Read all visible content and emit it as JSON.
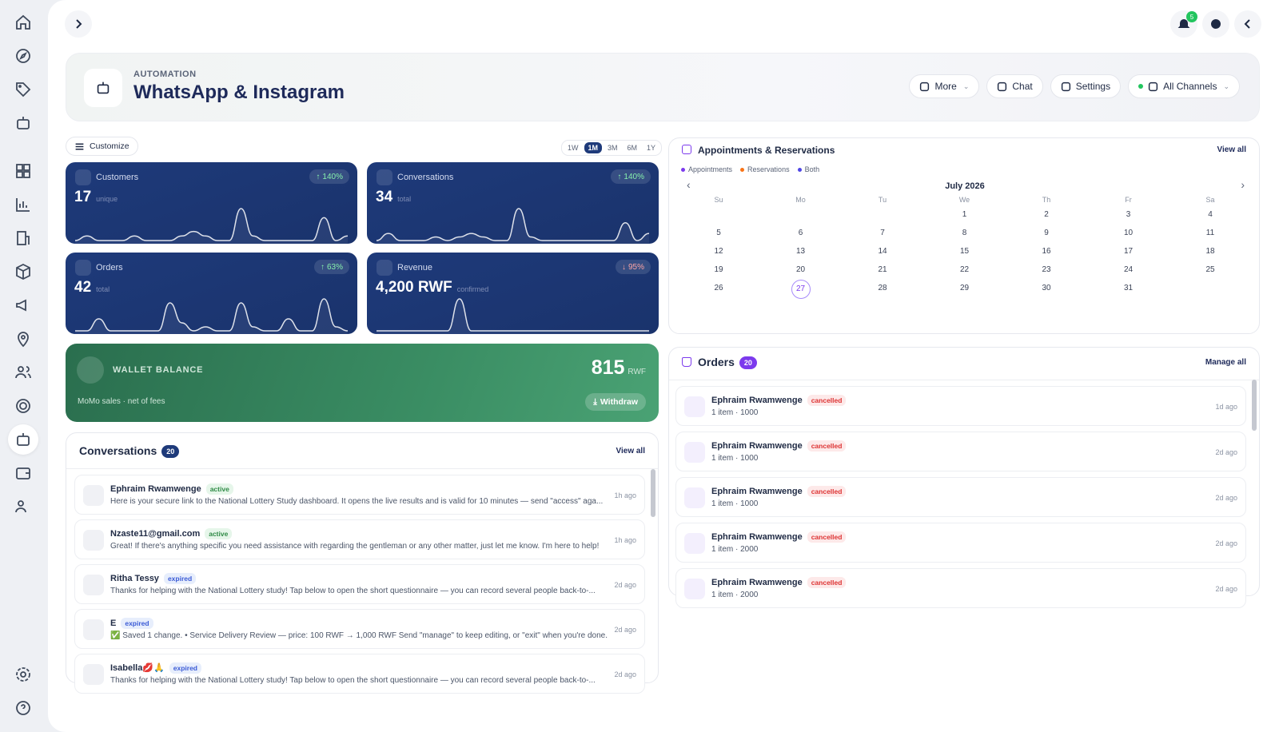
{
  "topbar": {
    "notification_count": "5"
  },
  "header": {
    "eyebrow": "AUTOMATION",
    "title": "WhatsApp & Instagram",
    "actions": [
      "More",
      "Chat",
      "Settings",
      "All Channels"
    ]
  },
  "toolbar": {
    "customize": "Customize",
    "ranges": [
      "1W",
      "1M",
      "3M",
      "6M",
      "1Y"
    ],
    "active_range_index": 1
  },
  "stats": [
    {
      "label": "Customers",
      "value": "17",
      "unit": "unique",
      "change": "140%",
      "trend": "up",
      "sparkline": [
        0,
        1,
        0,
        0,
        0,
        1,
        0,
        0,
        0,
        1,
        2,
        1,
        0,
        0,
        7,
        1,
        0,
        0,
        0,
        0,
        0,
        5,
        0,
        1
      ]
    },
    {
      "label": "Conversations",
      "value": "34",
      "unit": "total",
      "change": "140%",
      "trend": "up",
      "sparkline": [
        0,
        2,
        0,
        0,
        0,
        1,
        0,
        1,
        2,
        1,
        0,
        0,
        9,
        1,
        0,
        0,
        0,
        0,
        0,
        0,
        0,
        5,
        0,
        2
      ]
    },
    {
      "label": "Orders",
      "value": "42",
      "unit": "total",
      "change": "63%",
      "trend": "up",
      "sparkline": [
        0,
        0,
        3,
        0,
        0,
        0,
        0,
        0,
        7,
        2,
        0,
        1,
        0,
        0,
        7,
        1,
        0,
        0,
        3,
        0,
        0,
        8,
        1,
        0
      ]
    },
    {
      "label": "Revenue",
      "value": "4,200 RWF",
      "unit": "confirmed",
      "change": "95%",
      "trend": "down",
      "sparkline": [
        0,
        0,
        0,
        0,
        0,
        0,
        0,
        9,
        0,
        0,
        0,
        0,
        0,
        0,
        0,
        0,
        0,
        0,
        0,
        0,
        0,
        0,
        0,
        0
      ]
    }
  ],
  "wallet": {
    "label": "WALLET BALANCE",
    "amount": "815",
    "currency": "RWF",
    "note": "MoMo sales · net of fees",
    "action": "Withdraw"
  },
  "conversations": {
    "title": "Conversations",
    "count": "20",
    "view_all": "View all",
    "items": [
      {
        "name": "Ephraim Rwamwenge",
        "status": "active",
        "message": "Here is your secure link to the National Lottery Study dashboard. It opens the live results and is valid for 10 minutes — send \"access\" aga...",
        "time": "1h ago"
      },
      {
        "name": "Nzaste11@gmail.com",
        "status": "active",
        "message": "Great! If there's anything specific you need assistance with regarding the gentleman or any other matter, just let me know. I'm here to help!",
        "time": "1h ago"
      },
      {
        "name": "Ritha Tessy",
        "status": "expired",
        "message": "Thanks for helping with the National Lottery study! Tap below to open the short questionnaire — you can record several people back-to-...",
        "time": "2d ago"
      },
      {
        "name": "E",
        "status": "expired",
        "message": "✅ Saved 1 change. • Service Delivery Review — price: 100 RWF → 1,000 RWF Send \"manage\" to keep editing, or \"exit\" when you're done.",
        "time": "2d ago"
      },
      {
        "name": "Isabella💋🙏",
        "status": "expired",
        "message": "Thanks for helping with the National Lottery study! Tap below to open the short questionnaire — you can record several people back-to-...",
        "time": "2d ago"
      }
    ]
  },
  "appointments": {
    "title": "Appointments & Reservations",
    "view_all": "View all",
    "legend": [
      {
        "label": "Appointments",
        "color": "#7c3aed"
      },
      {
        "label": "Reservations",
        "color": "#f97316"
      },
      {
        "label": "Both",
        "color": "#4f46e5"
      }
    ],
    "month": "July 2026",
    "weekdays": [
      "Su",
      "Mo",
      "Tu",
      "We",
      "Th",
      "Fr",
      "Sa"
    ],
    "weeks": [
      [
        null,
        null,
        null,
        "1",
        "2",
        "3",
        "4"
      ],
      [
        "5",
        "6",
        "7",
        "8",
        "9",
        "10",
        "11"
      ],
      [
        "12",
        "13",
        "14",
        "15",
        "16",
        "17",
        "18"
      ],
      [
        "19",
        "20",
        "21",
        "22",
        "23",
        "24",
        "25"
      ],
      [
        "26",
        "27",
        "28",
        "29",
        "30",
        "31",
        null
      ]
    ],
    "today": "27"
  },
  "orders": {
    "title": "Orders",
    "count": "20",
    "manage": "Manage all",
    "items": [
      {
        "name": "Ephraim Rwamwenge",
        "status": "cancelled",
        "detail": "1 item · 1000",
        "time": "1d ago"
      },
      {
        "name": "Ephraim Rwamwenge",
        "status": "cancelled",
        "detail": "1 item · 1000",
        "time": "2d ago"
      },
      {
        "name": "Ephraim Rwamwenge",
        "status": "cancelled",
        "detail": "1 item · 1000",
        "time": "2d ago"
      },
      {
        "name": "Ephraim Rwamwenge",
        "status": "cancelled",
        "detail": "1 item · 2000",
        "time": "2d ago"
      },
      {
        "name": "Ephraim Rwamwenge",
        "status": "cancelled",
        "detail": "1 item · 2000",
        "time": "2d ago"
      }
    ]
  }
}
